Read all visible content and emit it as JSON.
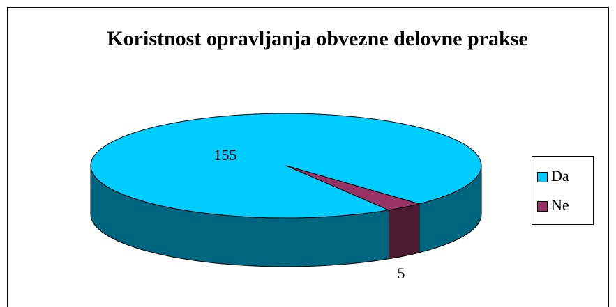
{
  "chart_data": {
    "type": "pie",
    "title": "Koristnost opravljanja obvezne delovne prakse",
    "categories": [
      "Da",
      "Ne"
    ],
    "values": [
      155,
      5
    ],
    "colors": [
      "#00ccff",
      "#993366"
    ],
    "legend": "right",
    "three_d": true
  }
}
